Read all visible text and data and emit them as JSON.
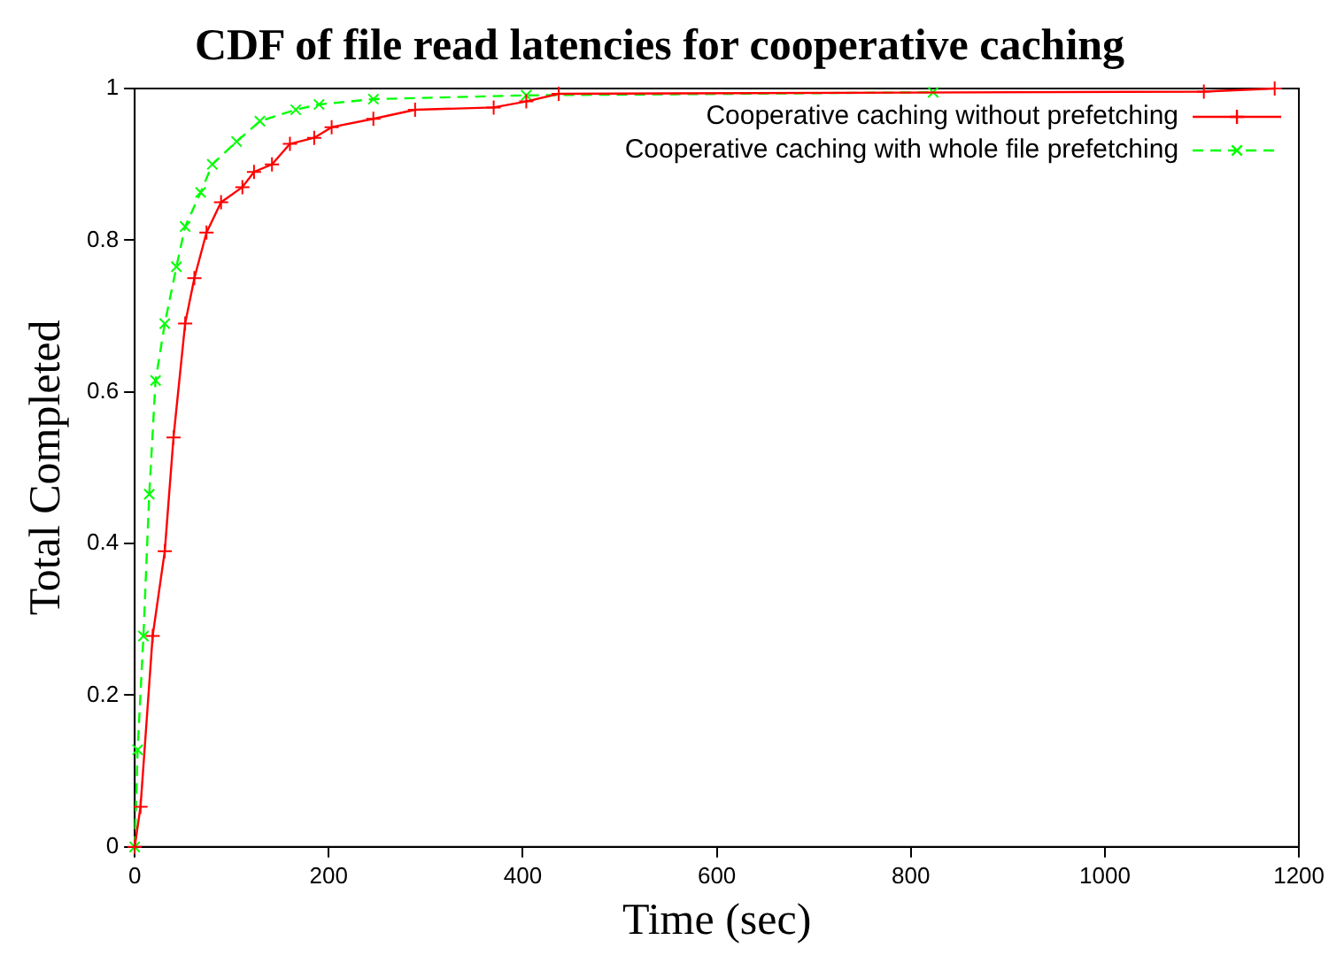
{
  "chart_data": {
    "type": "line",
    "title": "CDF of file read latencies for cooperative caching",
    "xlabel": "Time (sec)",
    "ylabel": "Total Completed",
    "xlim": [
      0,
      1200
    ],
    "xticks": [
      0,
      200,
      400,
      600,
      800,
      1000,
      1200
    ],
    "ylim": [
      0,
      1
    ],
    "yticks": [
      0,
      0.2,
      0.4,
      0.6,
      0.8,
      1
    ],
    "grid": false,
    "legend": "top right",
    "marker": "cross",
    "series": [
      {
        "name": "Cooperative caching without prefetching",
        "color": "#ff0000",
        "line_style": "solid",
        "x": [
          0,
          6,
          18.5,
          31,
          40,
          52,
          61.5,
          74,
          89,
          111,
          123,
          141.5,
          160,
          185,
          203,
          246,
          289,
          370,
          403.6,
          437,
          1102,
          1175
        ],
        "values": [
          0,
          0.053,
          0.278,
          0.39,
          0.54,
          0.69,
          0.75,
          0.81,
          0.85,
          0.87,
          0.89,
          0.9,
          0.927,
          0.935,
          0.949,
          0.96,
          0.972,
          0.975,
          0.983,
          0.993,
          0.996,
          1
        ]
      },
      {
        "name": "Cooperative caching with whole file prefetching",
        "color": "#00ff00",
        "line_style": "dashed",
        "x": [
          0,
          3,
          9,
          15,
          21.5,
          31,
          43,
          52,
          68,
          80,
          105,
          129,
          166,
          190,
          246,
          403.6,
          823
        ],
        "values": [
          0,
          0.128,
          0.278,
          0.465,
          0.615,
          0.69,
          0.765,
          0.818,
          0.863,
          0.9,
          0.93,
          0.957,
          0.972,
          0.979,
          0.986,
          0.991,
          0.995
        ]
      }
    ]
  }
}
